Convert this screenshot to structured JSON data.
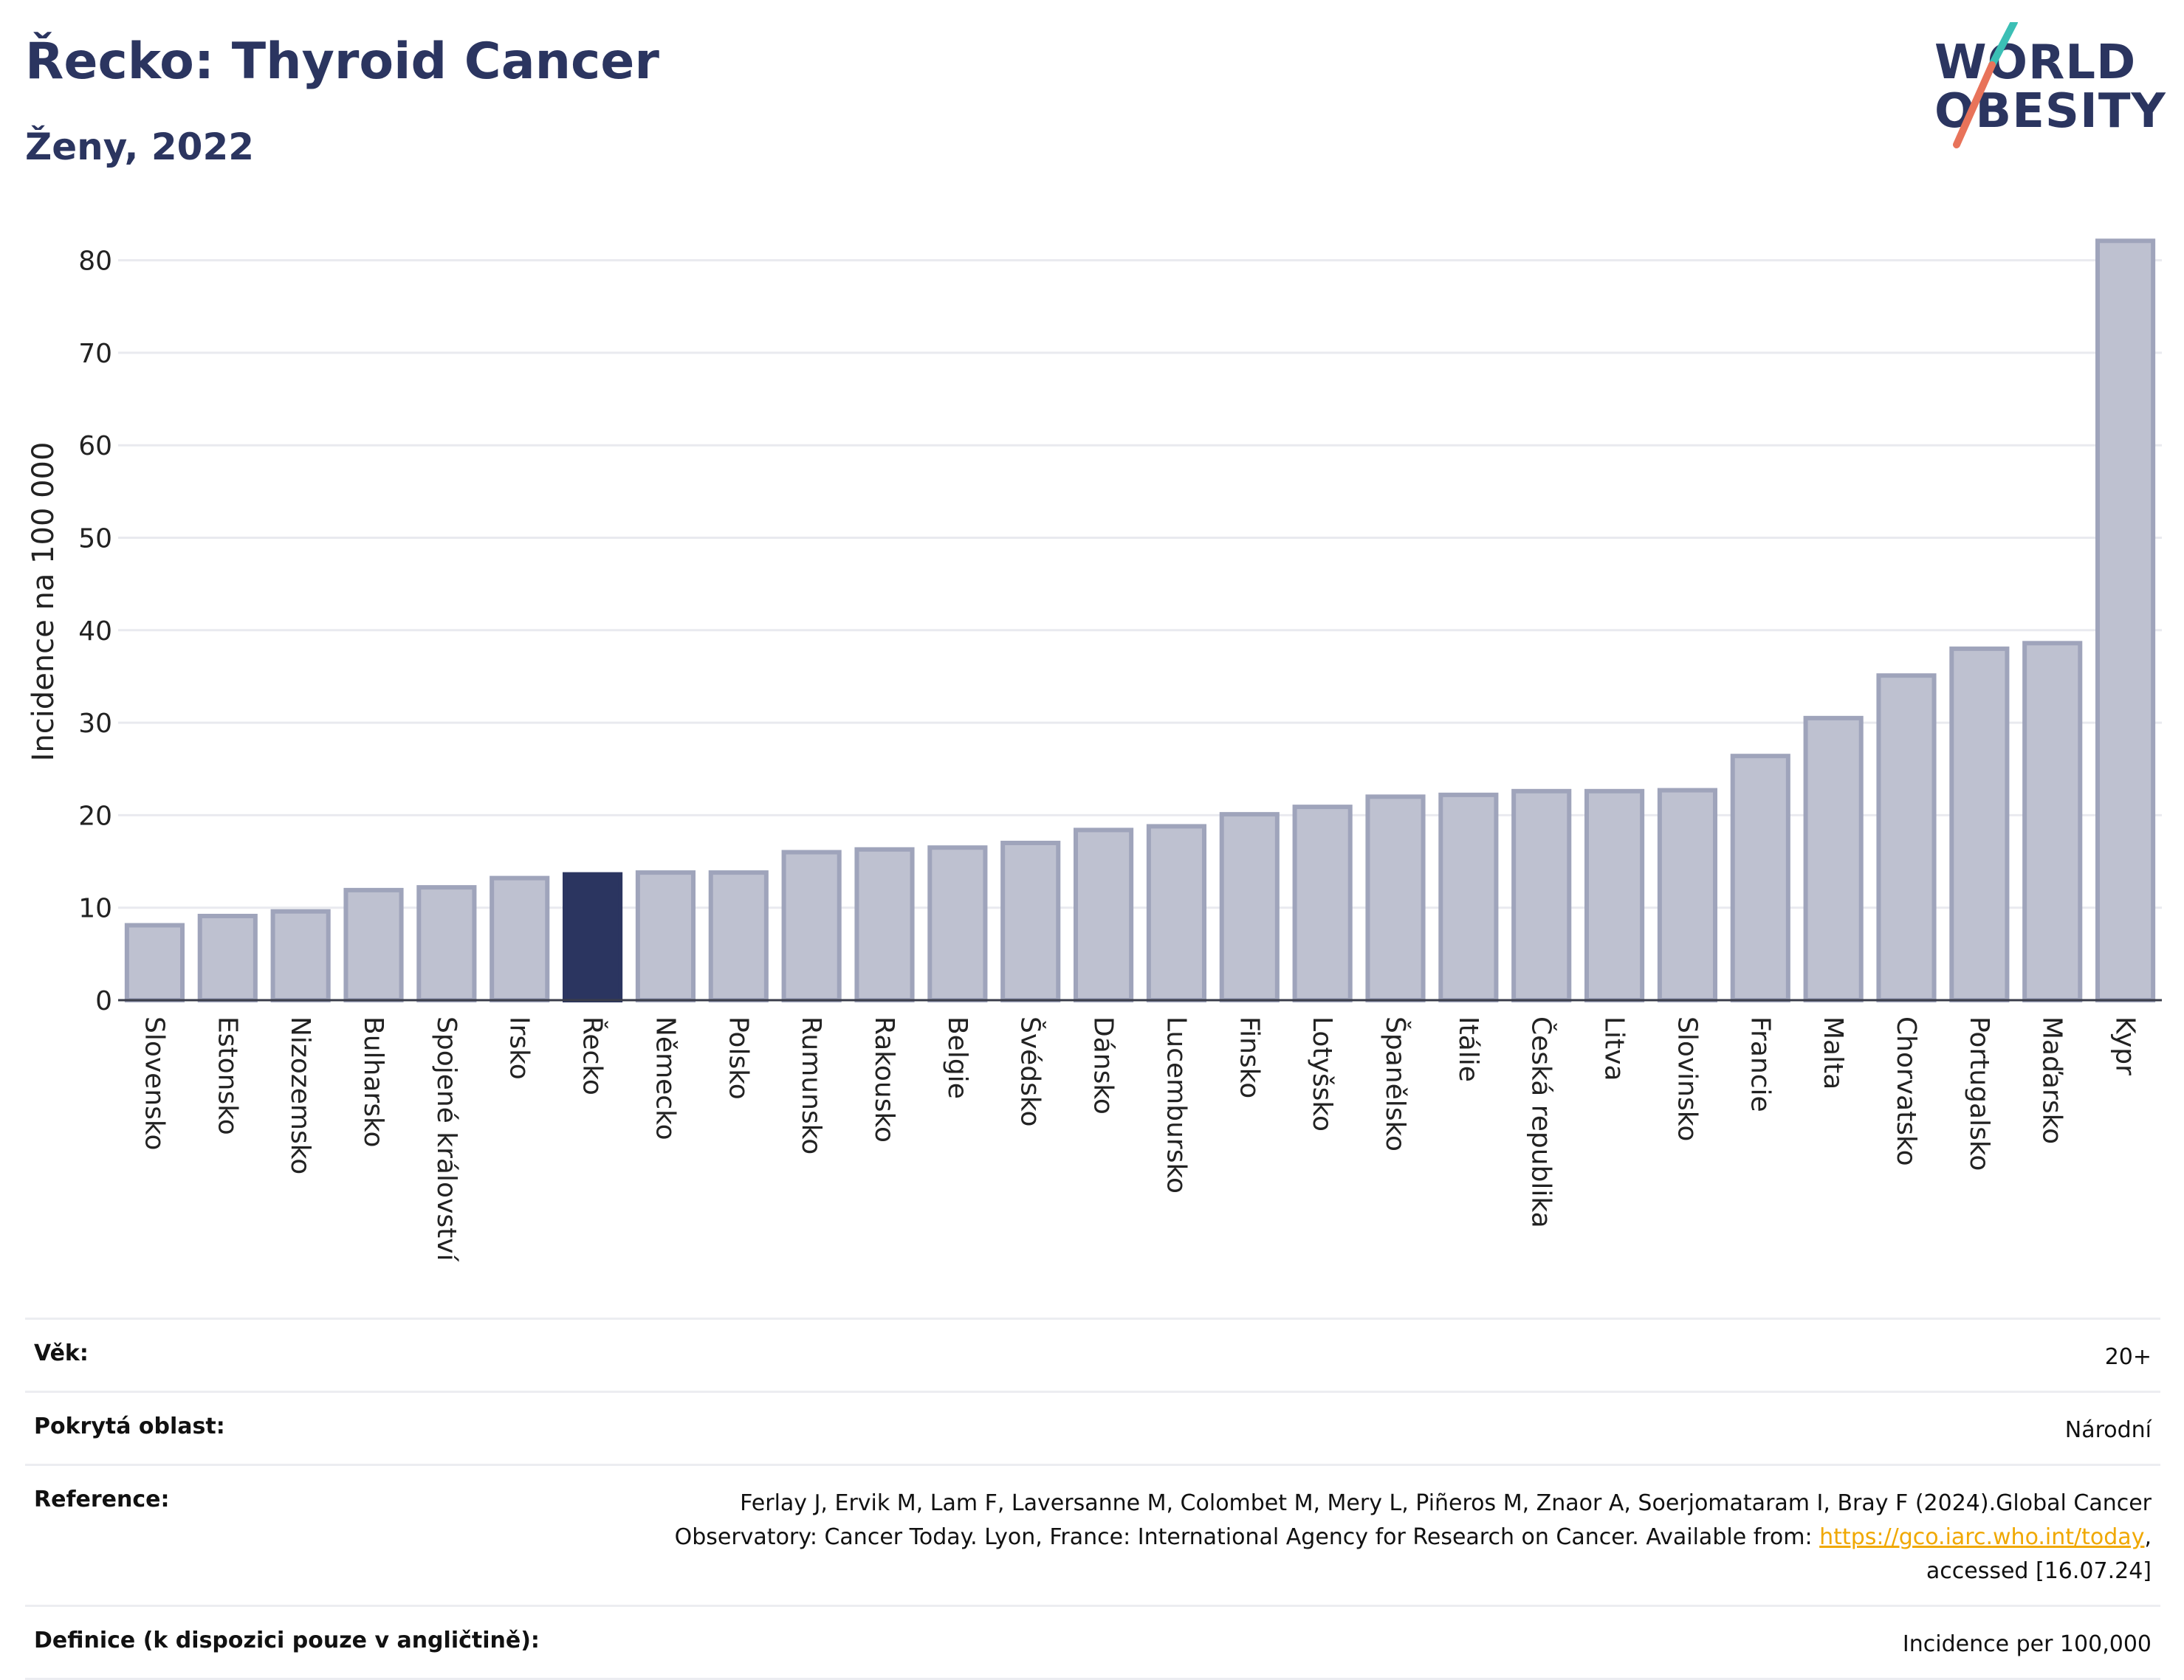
{
  "header": {
    "title": "Řecko: Thyroid Cancer",
    "subtitle": "Ženy, 2022"
  },
  "logo": {
    "line1": "WORLD",
    "line2": "OBESITY",
    "colors": {
      "text": "#2b3560",
      "slash_top": "#3bbfb5",
      "slash_bottom": "#e8735a"
    }
  },
  "chart_data": {
    "type": "bar",
    "ylabel": "Incidence na 100 000",
    "xlabel": "",
    "ylim": [
      0,
      83
    ],
    "yticks": [
      0,
      10,
      20,
      30,
      40,
      50,
      60,
      70,
      80
    ],
    "grid": true,
    "highlight": "Řecko",
    "colors": {
      "bar": "#bec1d0",
      "bar_border": "#9fa4bb",
      "highlight": "#2b3560"
    },
    "categories": [
      "Slovensko",
      "Estonsko",
      "Nizozemsko",
      "Bulharsko",
      "Spojené království",
      "Irsko",
      "Řecko",
      "Německo",
      "Polsko",
      "Rumunsko",
      "Rakousko",
      "Belgie",
      "Švédsko",
      "Dánsko",
      "Lucembursko",
      "Finsko",
      "Lotyšsko",
      "Španělsko",
      "Itálie",
      "Česká republika",
      "Litva",
      "Slovinsko",
      "Francie",
      "Malta",
      "Chorvatsko",
      "Portugalsko",
      "Maďarsko",
      "Kypr"
    ],
    "values": [
      8.1,
      9.1,
      9.6,
      11.9,
      12.2,
      13.2,
      13.6,
      13.8,
      13.8,
      16.0,
      16.3,
      16.5,
      17.0,
      18.4,
      18.8,
      20.1,
      20.9,
      22.0,
      22.2,
      22.6,
      22.6,
      22.7,
      26.4,
      30.5,
      35.1,
      38.0,
      38.6,
      82.1
    ]
  },
  "meta": {
    "age": {
      "label": "Věk:",
      "value": "20+"
    },
    "area": {
      "label": "Pokrytá oblast:",
      "value": "Národní"
    },
    "reference": {
      "label": "Reference:",
      "text_before": "Ferlay J, Ervik M, Lam F, Laversanne M, Colombet M, Mery L, Piñeros M, Znaor A, Soerjomataram I, Bray F (2024).Global Cancer Observatory: Cancer Today. Lyon, France: International Agency for Research on Cancer. Available from: ",
      "link": "https://gco.iarc.who.int/today",
      "text_after": ", accessed [16.07.24]"
    },
    "definition": {
      "label": "Definice (k dispozici pouze v angličtině):",
      "value": "Incidence per 100,000"
    }
  }
}
